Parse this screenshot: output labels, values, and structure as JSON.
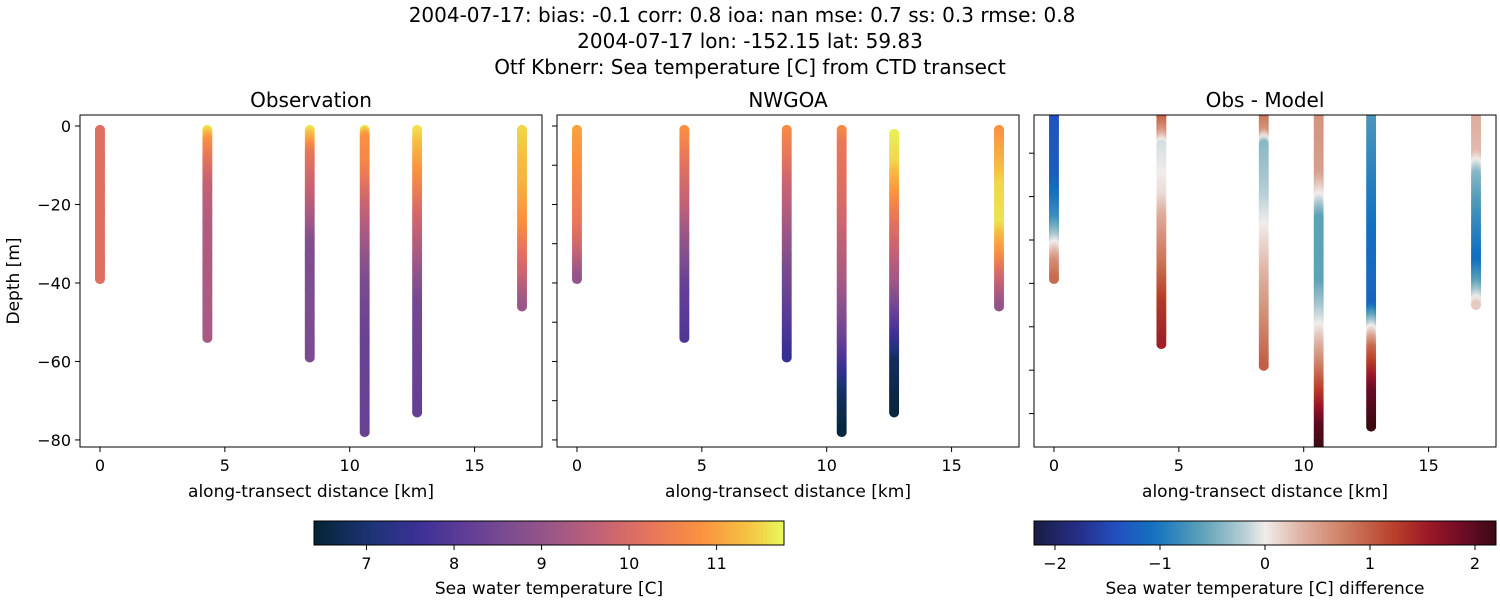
{
  "suptitle": [
    "2004-07-17: bias: -0.1  corr: 0.8  ioa: nan  mse: 0.7  ss: 0.3  rmse: 0.8",
    "2004-07-17 lon: -152.15 lat: 59.83",
    "Otf Kbnerr: Sea temperature [C] from CTD transect"
  ],
  "chart_data": [
    {
      "type": "scatter",
      "title": "Observation",
      "xlabel": "along-transect distance [km]",
      "ylabel": "Depth [m]",
      "xlim": [
        -0.8,
        17.7
      ],
      "ylim": [
        -81.8,
        2.8
      ],
      "xticks": [
        0,
        5,
        10,
        15
      ],
      "yticks": [
        0,
        -20,
        -40,
        -60,
        -80
      ],
      "yticklabels_shown": true,
      "colormap": "thermal",
      "clim": [
        6.4,
        11.77
      ],
      "profiles": [
        {
          "x": 0,
          "points": [
            [
              -1,
              10.1
            ],
            [
              -39,
              10.1
            ]
          ]
        },
        {
          "x": 4.3,
          "points": [
            [
              -1,
              11.6
            ],
            [
              -4,
              10.8
            ],
            [
              -8,
              10.3
            ],
            [
              -15,
              9.7
            ],
            [
              -25,
              9.4
            ],
            [
              -54,
              9.3
            ]
          ]
        },
        {
          "x": 8.4,
          "points": [
            [
              -1,
              11.6
            ],
            [
              -4,
              11.0
            ],
            [
              -7,
              10.3
            ],
            [
              -15,
              9.8
            ],
            [
              -25,
              9.2
            ],
            [
              -30,
              8.7
            ],
            [
              -59,
              8.6
            ]
          ]
        },
        {
          "x": 10.6,
          "points": [
            [
              -1,
              11.6
            ],
            [
              -3,
              10.8
            ],
            [
              -10,
              10.6
            ],
            [
              -20,
              9.8
            ],
            [
              -30,
              9.2
            ],
            [
              -40,
              8.6
            ],
            [
              -55,
              8.3
            ],
            [
              -78,
              8.3
            ]
          ]
        },
        {
          "x": 12.7,
          "points": [
            [
              -1,
              11.6
            ],
            [
              -8,
              11.1
            ],
            [
              -15,
              10.6
            ],
            [
              -22,
              10.0
            ],
            [
              -35,
              9.2
            ],
            [
              -45,
              8.5
            ],
            [
              -73,
              8.2
            ]
          ]
        },
        {
          "x": 16.9,
          "points": [
            [
              -1,
              11.5
            ],
            [
              -15,
              11.2
            ],
            [
              -25,
              10.8
            ],
            [
              -30,
              10.4
            ],
            [
              -38,
              9.8
            ],
            [
              -46,
              9.1
            ]
          ]
        }
      ]
    },
    {
      "type": "scatter",
      "title": "NWGOA",
      "xlabel": "along-transect distance [km]",
      "xlim": [
        -0.8,
        17.7
      ],
      "ylim": [
        -81.8,
        2.8
      ],
      "xticks": [
        0,
        5,
        10,
        15
      ],
      "yticks": [
        0,
        -10,
        -20,
        -30,
        -40,
        -50,
        -60,
        -70,
        -80
      ],
      "yticklabels_shown": false,
      "colormap": "thermal",
      "clim": [
        6.4,
        11.77
      ],
      "profiles": [
        {
          "x": 0,
          "points": [
            [
              -1,
              11.0
            ],
            [
              -10,
              10.8
            ],
            [
              -25,
              10.3
            ],
            [
              -32,
              9.8
            ],
            [
              -39,
              9.0
            ]
          ]
        },
        {
          "x": 4.3,
          "points": [
            [
              -1,
              10.8
            ],
            [
              -10,
              10.2
            ],
            [
              -20,
              9.7
            ],
            [
              -30,
              9.0
            ],
            [
              -40,
              8.3
            ],
            [
              -54,
              7.9
            ]
          ]
        },
        {
          "x": 8.4,
          "points": [
            [
              -1,
              10.7
            ],
            [
              -8,
              10.3
            ],
            [
              -15,
              9.8
            ],
            [
              -25,
              9.3
            ],
            [
              -35,
              8.7
            ],
            [
              -50,
              8.0
            ],
            [
              -59,
              7.5
            ]
          ]
        },
        {
          "x": 10.6,
          "points": [
            [
              -1,
              10.7
            ],
            [
              -5,
              10.3
            ],
            [
              -20,
              10.0
            ],
            [
              -40,
              9.3
            ],
            [
              -55,
              8.3
            ],
            [
              -62,
              7.6
            ],
            [
              -68,
              6.9
            ],
            [
              -78,
              6.5
            ]
          ]
        },
        {
          "x": 12.7,
          "points": [
            [
              -2,
              11.7
            ],
            [
              -10,
              11.5
            ],
            [
              -18,
              10.8
            ],
            [
              -25,
              10.2
            ],
            [
              -40,
              9.2
            ],
            [
              -48,
              8.3
            ],
            [
              -55,
              7.5
            ],
            [
              -60,
              6.8
            ],
            [
              -73,
              6.5
            ]
          ]
        },
        {
          "x": 16.9,
          "points": [
            [
              -1,
              10.8
            ],
            [
              -15,
              11.5
            ],
            [
              -25,
              11.6
            ],
            [
              -33,
              10.8
            ],
            [
              -38,
              10.0
            ],
            [
              -46,
              9.0
            ]
          ]
        }
      ]
    },
    {
      "type": "scatter",
      "title": "Obs - Model",
      "xlabel": "along-transect distance [km]",
      "xlim": [
        -0.8,
        17.7
      ],
      "ylim": [
        -77.7,
        -1.2
      ],
      "xticks": [
        0,
        5,
        10,
        15
      ],
      "yticks": [
        -10,
        -20,
        -30,
        -40,
        -50,
        -60,
        -70
      ],
      "yticklabels_shown": false,
      "colormap": "balance",
      "clim": [
        -2.2,
        2.2
      ],
      "profiles": [
        {
          "x": 0,
          "points": [
            [
              -1,
              -1.4
            ],
            [
              -15,
              -1.3
            ],
            [
              -25,
              -0.8
            ],
            [
              -29,
              -0.3
            ],
            [
              -31,
              0
            ],
            [
              -35,
              0.6
            ],
            [
              -39,
              0.9
            ]
          ]
        },
        {
          "x": 4.3,
          "points": [
            [
              -1,
              1.1
            ],
            [
              -5,
              0.6
            ],
            [
              -8,
              -0.1
            ],
            [
              -15,
              0
            ],
            [
              -20,
              0.1
            ],
            [
              -25,
              0.4
            ],
            [
              -35,
              0.8
            ],
            [
              -45,
              1.3
            ],
            [
              -54,
              1.5
            ]
          ]
        },
        {
          "x": 8.4,
          "points": [
            [
              -1,
              0.9
            ],
            [
              -5,
              0.6
            ],
            [
              -8,
              -0.4
            ],
            [
              -20,
              -0.2
            ],
            [
              -30,
              0.1
            ],
            [
              -40,
              0.4
            ],
            [
              -50,
              0.7
            ],
            [
              -59,
              1.0
            ]
          ]
        },
        {
          "x": 10.6,
          "points": [
            [
              -1,
              0.6
            ],
            [
              -15,
              0.5
            ],
            [
              -20,
              0
            ],
            [
              -25,
              -0.6
            ],
            [
              -40,
              -0.6
            ],
            [
              -50,
              0
            ],
            [
              -60,
              0.8
            ],
            [
              -68,
              1.5
            ],
            [
              -73,
              2.0
            ],
            [
              -80,
              2.2
            ]
          ]
        },
        {
          "x": 12.7,
          "points": [
            [
              -1,
              -0.7
            ],
            [
              -30,
              -1.1
            ],
            [
              -45,
              -1.2
            ],
            [
              -50,
              -0.1
            ],
            [
              -55,
              0.9
            ],
            [
              -60,
              1.4
            ],
            [
              -65,
              1.9
            ],
            [
              -73,
              2.2
            ]
          ]
        },
        {
          "x": 16.9,
          "points": [
            [
              -1,
              0.4
            ],
            [
              -10,
              0.3
            ],
            [
              -15,
              -0.4
            ],
            [
              -25,
              -0.8
            ],
            [
              -35,
              -1.1
            ],
            [
              -40,
              -0.6
            ],
            [
              -45,
              0.2
            ]
          ]
        }
      ]
    }
  ],
  "colorbars": [
    {
      "label": "Sea water temperature [C]",
      "colormap": "thermal",
      "range": [
        6.4,
        11.77
      ],
      "ticks": [
        "7",
        "8",
        "9",
        "10",
        "11"
      ],
      "tick_values": [
        7,
        8,
        9,
        10,
        11
      ]
    },
    {
      "label": "Sea water temperature [C] difference",
      "colormap": "balance",
      "range": [
        -2.2,
        2.2
      ],
      "ticks": [
        "−2",
        "−1",
        "0",
        "1",
        "2"
      ],
      "tick_values": [
        -2,
        -1,
        0,
        1,
        2
      ]
    }
  ],
  "colormaps": {
    "thermal": [
      [
        0,
        "#042333"
      ],
      [
        0.12,
        "#1d3475"
      ],
      [
        0.22,
        "#3a3095"
      ],
      [
        0.32,
        "#5f3c97"
      ],
      [
        0.42,
        "#7e4d8f"
      ],
      [
        0.52,
        "#a05886"
      ],
      [
        0.62,
        "#c76373"
      ],
      [
        0.72,
        "#e8765b"
      ],
      [
        0.82,
        "#fa9040"
      ],
      [
        0.92,
        "#f6bf42"
      ],
      [
        1,
        "#e8fa5b"
      ]
    ],
    "balance": [
      [
        0,
        "#191c43"
      ],
      [
        0.1,
        "#262f8a"
      ],
      [
        0.18,
        "#2350c0"
      ],
      [
        0.26,
        "#1371c0"
      ],
      [
        0.36,
        "#5aa0b8"
      ],
      [
        0.44,
        "#a6c6cf"
      ],
      [
        0.5,
        "#f0eceb"
      ],
      [
        0.58,
        "#dfb1a2"
      ],
      [
        0.68,
        "#cc7a5e"
      ],
      [
        0.78,
        "#b9402a"
      ],
      [
        0.86,
        "#9a1527"
      ],
      [
        0.94,
        "#650b25"
      ],
      [
        1,
        "#3c0912"
      ]
    ]
  }
}
